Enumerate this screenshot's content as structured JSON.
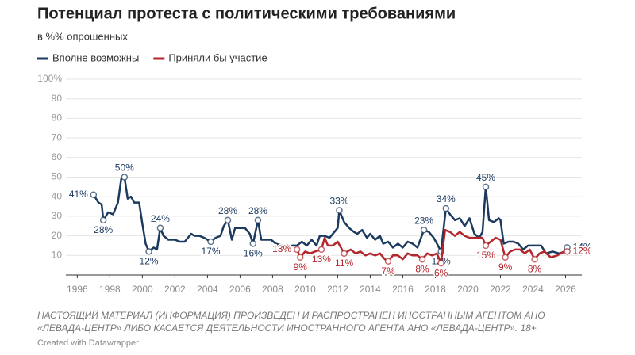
{
  "chart_data": {
    "type": "line",
    "title": "Потенциал протеста с политическими требованиями",
    "subtitle": "в %% опрошенных",
    "legend": "top-left",
    "grid": true,
    "xlim": [
      1995.3,
      2027
    ],
    "xticks": [
      1996,
      1998,
      2000,
      2002,
      2004,
      2006,
      2008,
      2010,
      2012,
      2014,
      2016,
      2018,
      2020,
      2022,
      2024,
      2026
    ],
    "ylim": [
      0,
      100
    ],
    "yticks": [
      10,
      20,
      30,
      40,
      50,
      60,
      70,
      80,
      90,
      {
        "value": 100,
        "label": "100%"
      }
    ],
    "series": [
      {
        "name": "Вполне возможны",
        "color": "#1b3a5e",
        "x": [
          1997.0,
          1997.3,
          1997.5,
          1997.6,
          1997.9,
          1998.2,
          1998.5,
          1998.7,
          1998.9,
          1999.1,
          1999.3,
          1999.5,
          1999.8,
          2000.0,
          2000.2,
          2000.4,
          2000.7,
          2000.9,
          2001.1,
          2001.3,
          2001.6,
          2002.0,
          2002.3,
          2002.6,
          2003.0,
          2003.2,
          2003.5,
          2003.8,
          2004.2,
          2004.5,
          2004.8,
          2005.0,
          2005.25,
          2005.5,
          2005.7,
          2006.0,
          2006.3,
          2006.6,
          2006.8,
          2007.1,
          2007.3,
          2007.6,
          2007.9,
          2008.2,
          2008.6,
          2009.5,
          2009.8,
          2010.1,
          2010.4,
          2010.7,
          2010.9,
          2011.2,
          2011.5,
          2011.8,
          2012.0,
          2012.1,
          2012.4,
          2012.7,
          2013.0,
          2013.2,
          2013.5,
          2013.8,
          2014.0,
          2014.3,
          2014.6,
          2014.8,
          2015.1,
          2015.4,
          2015.7,
          2016.0,
          2016.3,
          2016.6,
          2016.9,
          2017.3,
          2017.6,
          2017.9,
          2018.1,
          2018.35,
          2018.65,
          2018.9,
          2019.2,
          2019.5,
          2019.8,
          2020.1,
          2020.4,
          2020.7,
          2020.9,
          2021.1,
          2021.3,
          2021.6,
          2021.9,
          2022.0,
          2022.2,
          2022.5,
          2022.8,
          2023.1,
          2023.4,
          2023.7,
          2024.0,
          2024.5,
          2024.8,
          2025.2,
          2025.6,
          2026.0,
          2026.1
        ],
        "values": [
          41,
          37,
          36,
          28,
          32,
          31,
          37,
          49,
          50,
          39,
          40,
          37,
          37,
          26,
          16,
          12,
          14,
          13,
          24,
          20,
          18,
          18,
          17,
          17,
          21,
          20,
          20,
          19,
          17,
          19,
          20,
          25,
          28,
          18,
          24,
          24,
          24,
          21,
          16,
          28,
          18,
          18,
          18,
          16,
          15,
          15,
          17,
          15,
          18,
          15,
          20,
          20,
          19,
          22,
          24,
          33,
          27,
          24,
          22,
          21,
          23,
          19,
          21,
          18,
          20,
          16,
          17,
          14,
          16,
          14,
          17,
          16,
          14,
          23,
          22,
          19,
          16,
          12,
          34,
          31,
          28,
          29,
          25,
          29,
          21,
          19,
          22,
          45,
          28,
          27,
          29,
          28,
          16,
          17,
          17,
          16,
          13,
          15,
          15,
          15,
          11,
          12,
          11,
          12,
          14
        ],
        "value_labels": [
          "41%",
          null,
          null,
          "28%",
          null,
          null,
          null,
          null,
          "50%",
          null,
          null,
          null,
          null,
          null,
          null,
          "12%",
          null,
          null,
          "24%",
          null,
          null,
          null,
          null,
          null,
          null,
          null,
          null,
          null,
          "17%",
          null,
          null,
          null,
          "28%",
          null,
          null,
          null,
          null,
          null,
          "16%",
          "28%",
          null,
          null,
          null,
          null,
          null,
          null,
          null,
          null,
          null,
          null,
          null,
          null,
          null,
          null,
          null,
          "33%",
          null,
          null,
          null,
          null,
          null,
          null,
          null,
          null,
          null,
          null,
          null,
          null,
          null,
          null,
          null,
          null,
          null,
          "23%",
          null,
          null,
          null,
          "12%",
          "34%",
          null,
          null,
          null,
          null,
          null,
          null,
          null,
          null,
          "45%",
          null,
          null,
          null,
          null,
          null,
          null,
          null,
          null,
          null,
          null,
          null,
          null,
          null,
          null,
          null,
          null,
          "14%"
        ]
      },
      {
        "name": "Приняли бы участие",
        "color": "#b3262c",
        "x": [
          2009.5,
          2009.7,
          2010.0,
          2010.3,
          2010.6,
          2011.0,
          2011.2,
          2011.4,
          2011.7,
          2012.0,
          2012.4,
          2012.8,
          2013.1,
          2013.4,
          2013.7,
          2014.0,
          2014.3,
          2014.6,
          2014.9,
          2015.1,
          2015.4,
          2015.7,
          2016.0,
          2016.3,
          2016.6,
          2016.9,
          2017.2,
          2017.5,
          2017.8,
          2018.1,
          2018.35,
          2018.6,
          2018.9,
          2019.2,
          2019.5,
          2019.8,
          2020.1,
          2020.6,
          2020.9,
          2021.1,
          2021.4,
          2021.7,
          2022.0,
          2022.3,
          2022.6,
          2022.9,
          2023.2,
          2023.5,
          2023.8,
          2024.1,
          2024.4,
          2024.7,
          2025.1,
          2025.5,
          2025.9,
          2026.1
        ],
        "values": [
          13,
          9,
          12,
          11,
          12,
          13,
          19,
          15,
          15,
          17,
          11,
          13,
          11,
          12,
          10,
          11,
          10,
          11,
          8,
          7,
          10,
          10,
          8,
          11,
          10,
          10,
          8,
          11,
          10,
          11,
          6,
          23,
          22,
          20,
          22,
          20,
          19,
          19,
          19,
          15,
          17,
          19,
          18,
          9,
          12,
          13,
          13,
          11,
          13,
          8,
          11,
          12,
          9,
          10,
          12,
          12
        ],
        "value_labels": [
          "13%",
          "9%",
          null,
          null,
          null,
          "13%",
          null,
          null,
          null,
          null,
          "11%",
          null,
          null,
          null,
          null,
          null,
          null,
          null,
          null,
          "7%",
          null,
          null,
          null,
          null,
          null,
          null,
          "8%",
          null,
          null,
          null,
          "6%",
          null,
          null,
          null,
          null,
          null,
          null,
          null,
          null,
          "15%",
          null,
          null,
          null,
          "9%",
          null,
          null,
          null,
          null,
          null,
          "8%",
          null,
          null,
          null,
          null,
          null,
          "12%"
        ]
      }
    ],
    "note": "НАСТОЯЩИЙ МАТЕРИАЛ (ИНФОРМАЦИЯ) ПРОИЗВЕДЕН И РАСПРОСТРАНЕН ИНОСТРАННЫМ АГЕНТОМ АНО «ЛЕВАДА-ЦЕНТР» ЛИБО КАСАЕТСЯ ДЕЯТЕЛЬНОСТИ ИНОСТРАННОГО АГЕНТА АНО «ЛЕВАДА-ЦЕНТР». 18+",
    "credit": "Created with Datawrapper"
  }
}
